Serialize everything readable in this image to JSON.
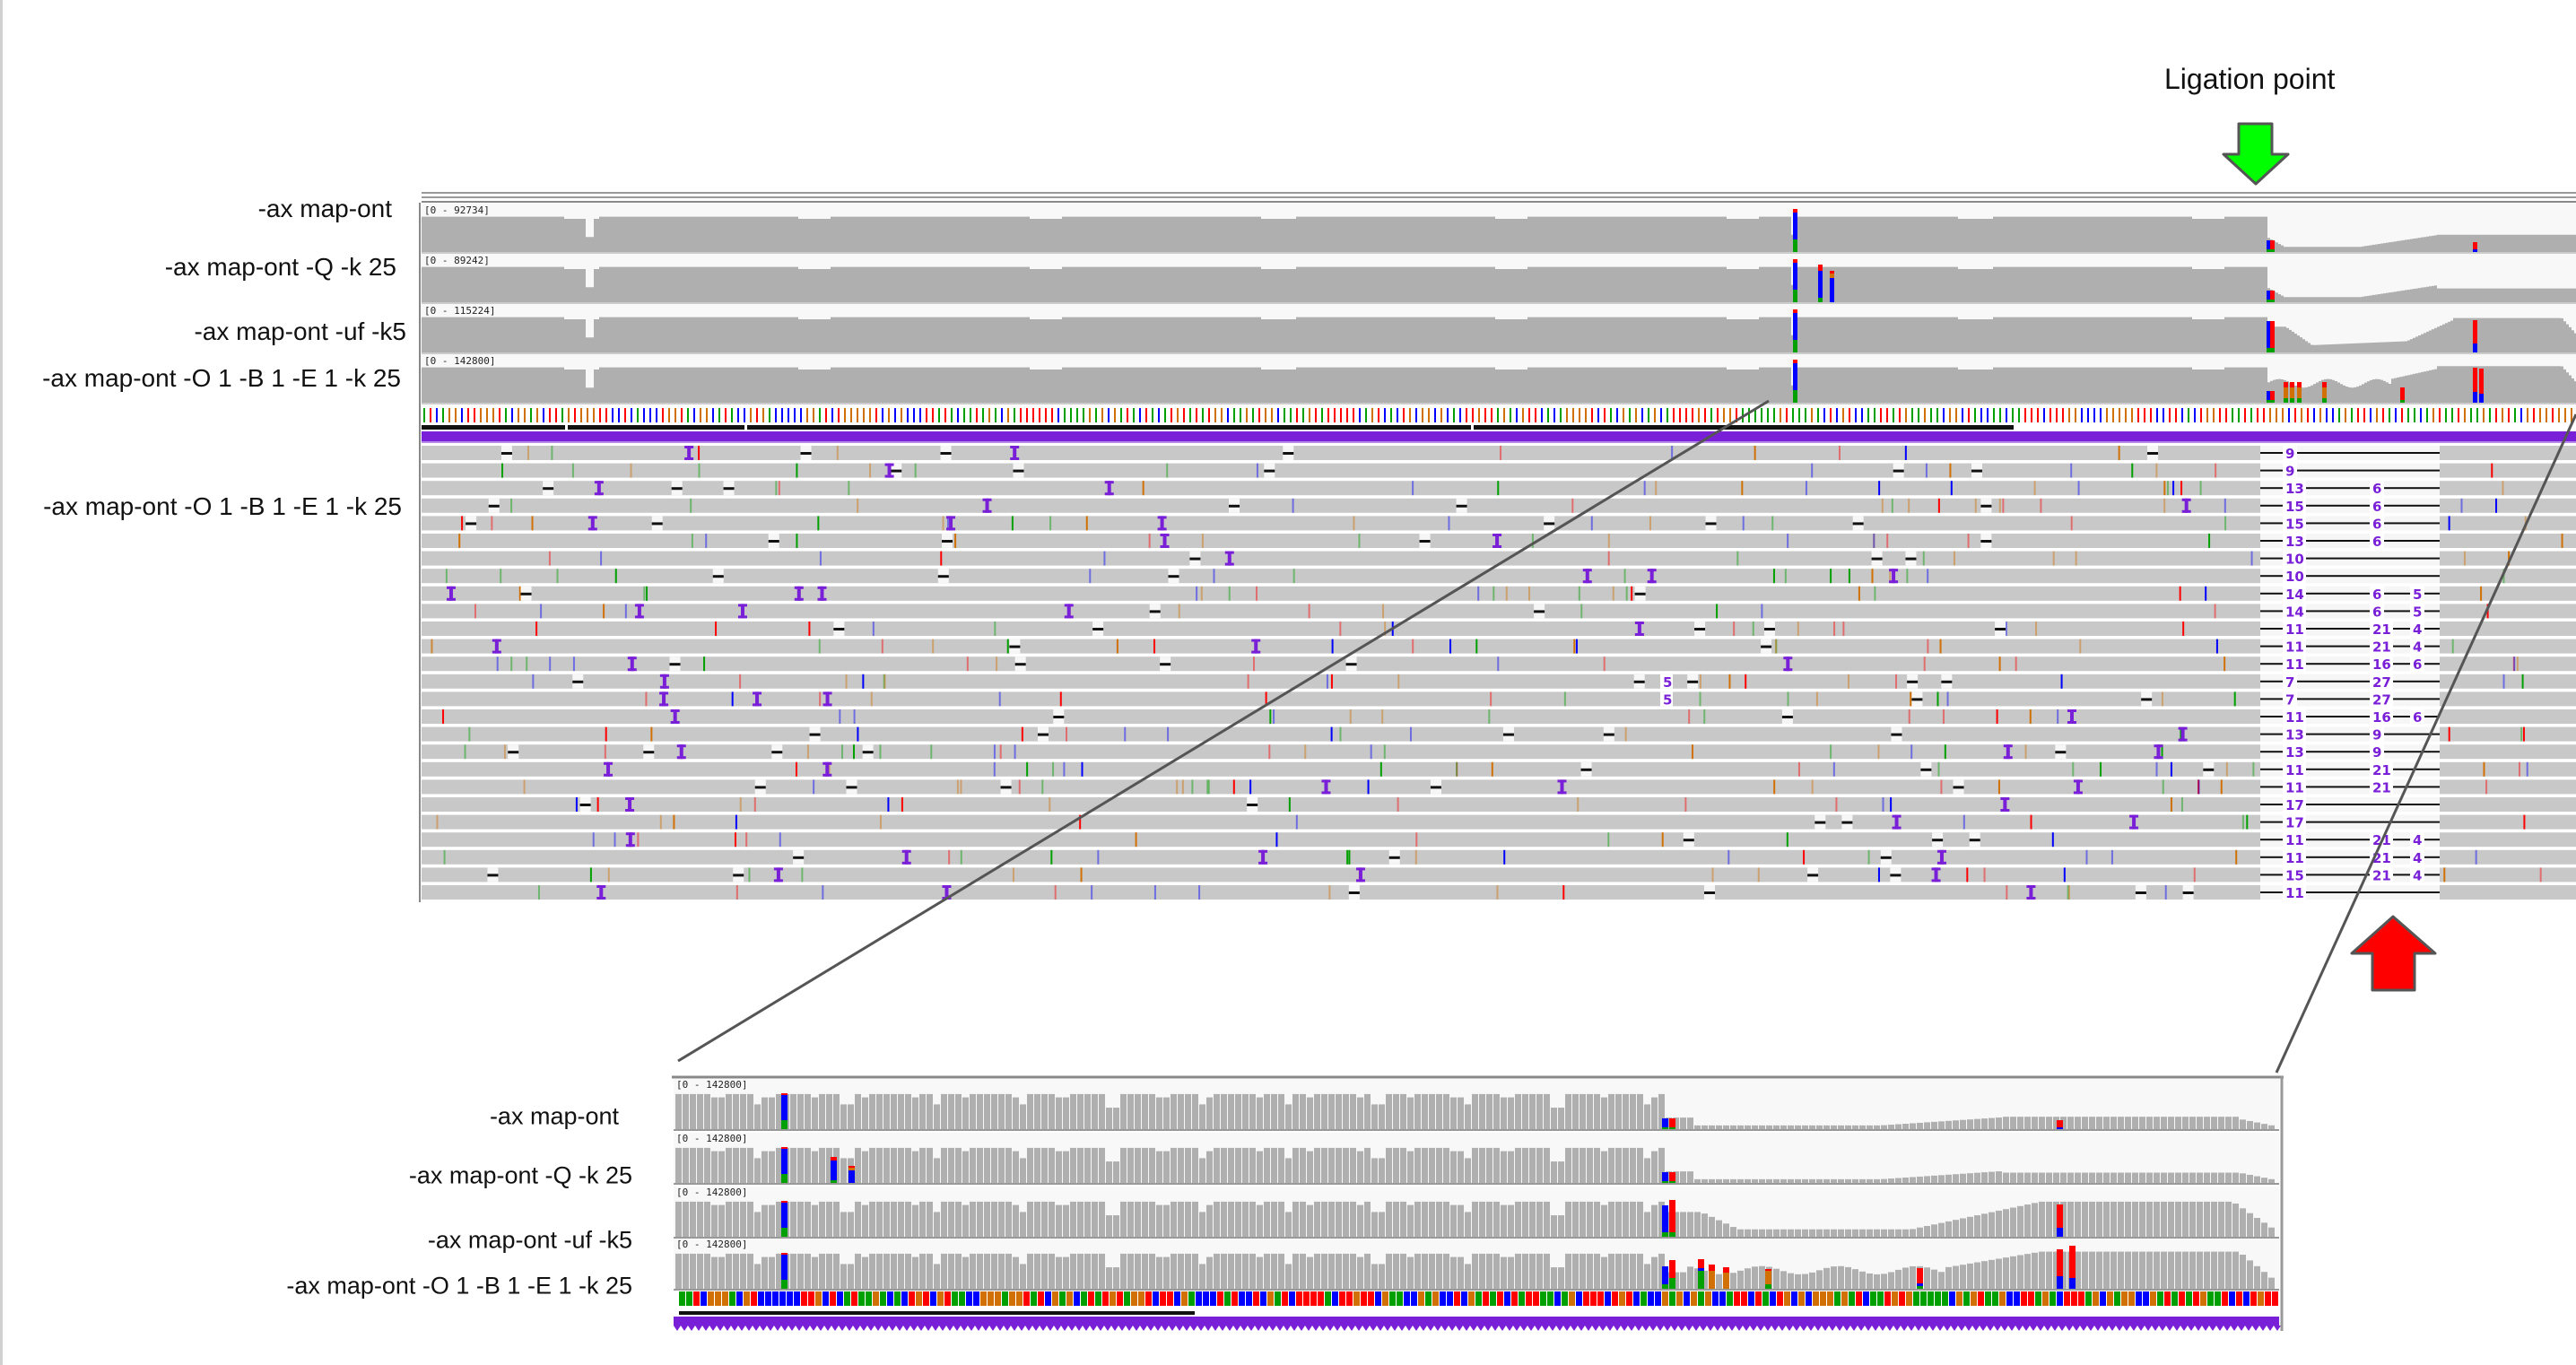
{
  "annotation": {
    "ligation_label": "Ligation point",
    "ligation_arrow_color": "#00ff00",
    "breakpoint_arrow_color": "#ff0000",
    "arrow_outline_color": "#555555"
  },
  "main_view": {
    "tracks": [
      {
        "label": "-ax map-ont",
        "range": "[0 - 92734]"
      },
      {
        "label": "-ax map-ont -Q -k 25",
        "range": "[0 - 89242]"
      },
      {
        "label": "-ax map-ont -uf -k5",
        "range": "[0 - 115224]"
      },
      {
        "label": "-ax map-ont -O 1 -B 1 -E 1 -k 25",
        "range": "[0 - 142800]"
      }
    ],
    "alignment_label": "-ax map-ont -O 1 -B 1 -E 1 -k 25",
    "read_right_labels": [
      [
        "9"
      ],
      [
        "9"
      ],
      [
        "13",
        "6"
      ],
      [
        "15",
        "6"
      ],
      [
        "15",
        "6"
      ],
      [
        "13",
        "6"
      ],
      [
        "10"
      ],
      [
        "10"
      ],
      [
        "14",
        "6",
        "5"
      ],
      [
        "14",
        "6",
        "5"
      ],
      [
        "11",
        "21",
        "4"
      ],
      [
        "11",
        "21",
        "4"
      ],
      [
        "11",
        "16",
        "6"
      ],
      [
        "7",
        "27"
      ],
      [
        "7",
        "27"
      ],
      [
        "11",
        "16",
        "6"
      ],
      [
        "13",
        "9"
      ],
      [
        "13",
        "9"
      ],
      [
        "11",
        "21"
      ],
      [
        "11",
        "21"
      ],
      [
        "17"
      ],
      [
        "17"
      ],
      [
        "11",
        "21",
        "4"
      ],
      [
        "11",
        "21",
        "4"
      ],
      [
        "15",
        "21",
        "4"
      ],
      [
        "11"
      ]
    ],
    "mid_insertion_labels": [
      "5",
      "5"
    ]
  },
  "inset_view": {
    "tracks": [
      {
        "label": "-ax map-ont",
        "range": "[0 - 142800]"
      },
      {
        "label": "-ax map-ont -Q -k 25",
        "range": "[0 - 142800]"
      },
      {
        "label": "-ax map-ont -uf -k5",
        "range": "[0 - 142800]"
      },
      {
        "label": "-ax map-ont -O 1 -B 1 -E 1 -k 25",
        "range": "[0 - 142800]"
      }
    ]
  },
  "colors": {
    "coverage": "#afafaf",
    "track_bg": "#f8f8f8",
    "read": "#c8c8c8",
    "insertion": "#7a1fd8",
    "base_A": "#00a000",
    "base_C": "#0000ff",
    "base_G": "#d17105",
    "base_T": "#ff0000"
  }
}
